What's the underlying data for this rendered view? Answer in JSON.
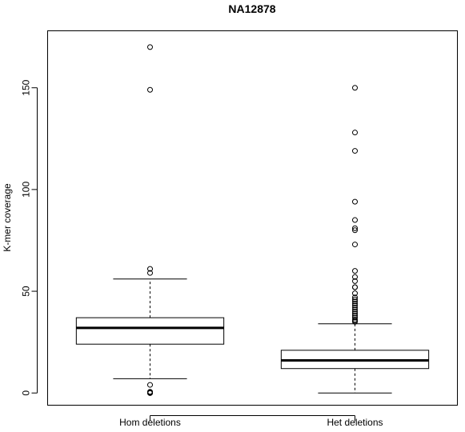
{
  "chart_data": {
    "type": "boxplot",
    "title": "NA12878",
    "xlabel": "",
    "ylabel": "K-mer coverage",
    "ylim": [
      -6,
      178
    ],
    "y_ticks": [
      0,
      50,
      100,
      150
    ],
    "y_tick_labels": [
      "0",
      "50",
      "100",
      "150"
    ],
    "grid": false,
    "legend": "none",
    "categories": [
      "Hom deletions",
      "Het deletions"
    ],
    "boxes": [
      {
        "category": "Hom deletions",
        "whisker_low": 7,
        "q1": 24,
        "median": 32,
        "q3": 37,
        "whisker_high": 56,
        "outliers": [
          170,
          149,
          61,
          59,
          4,
          0.6,
          0.3,
          0,
          0,
          0
        ]
      },
      {
        "category": "Het deletions",
        "whisker_low": 0,
        "q1": 12,
        "median": 16,
        "q3": 21,
        "whisker_high": 34,
        "outliers": [
          150,
          128,
          119,
          94,
          85,
          81,
          80,
          73,
          60,
          57,
          55,
          52,
          52,
          49,
          47,
          46,
          45,
          44,
          43,
          42,
          41,
          40,
          39,
          38,
          37,
          36,
          35.5,
          35
        ]
      }
    ]
  }
}
